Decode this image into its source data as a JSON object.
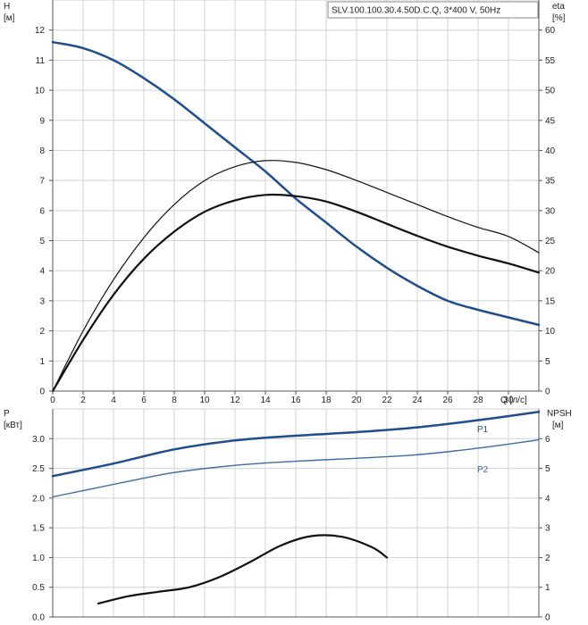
{
  "chart_data": [
    {
      "type": "line",
      "title": "SLV.100.100.30.4.50D.C.Q, 3*400 V, 50Hz",
      "x": {
        "label": "Q [л/с]",
        "range": [
          0,
          32
        ],
        "ticks": [
          0,
          2,
          4,
          6,
          8,
          10,
          12,
          14,
          16,
          18,
          20,
          22,
          24,
          26,
          28,
          30
        ]
      },
      "y_left": {
        "label": "H",
        "unit": "[м]",
        "range": [
          0,
          13
        ],
        "ticks": [
          0,
          1,
          2,
          3,
          4,
          5,
          6,
          7,
          8,
          9,
          10,
          11,
          12
        ]
      },
      "y_right": {
        "label": "eta",
        "unit": "[%]",
        "range": [
          0,
          65
        ],
        "ticks": [
          0,
          5,
          10,
          15,
          20,
          25,
          30,
          35,
          40,
          45,
          50,
          55,
          60
        ]
      },
      "grid": true,
      "series": [
        {
          "axis": "left",
          "color": "#1f4e8c",
          "width": 2.5,
          "points": [
            [
              0,
              11.6
            ],
            [
              2,
              11.4
            ],
            [
              4,
              11.0
            ],
            [
              6,
              10.4
            ],
            [
              8,
              9.7
            ],
            [
              10,
              8.9
            ],
            [
              12,
              8.1
            ],
            [
              14,
              7.3
            ],
            [
              16,
              6.4
            ],
            [
              18,
              5.6
            ],
            [
              20,
              4.8
            ],
            [
              22,
              4.1
            ],
            [
              24,
              3.5
            ],
            [
              26,
              3.0
            ],
            [
              28,
              2.7
            ],
            [
              30,
              2.45
            ],
            [
              32,
              2.2
            ]
          ]
        },
        {
          "axis": "right",
          "color": "#111111",
          "width": 1.2,
          "points": [
            [
              0,
              0
            ],
            [
              2,
              10
            ],
            [
              4,
              18.5
            ],
            [
              6,
              25.5
            ],
            [
              8,
              31
            ],
            [
              10,
              35
            ],
            [
              12,
              37.3
            ],
            [
              14,
              38.3
            ],
            [
              16,
              38.0
            ],
            [
              18,
              36.8
            ],
            [
              20,
              35.0
            ],
            [
              22,
              33.0
            ],
            [
              24,
              31.0
            ],
            [
              26,
              29.0
            ],
            [
              28,
              27.2
            ],
            [
              30,
              25.7
            ],
            [
              32,
              23.0
            ]
          ]
        },
        {
          "axis": "right",
          "color": "#111111",
          "width": 2.2,
          "points": [
            [
              0,
              0
            ],
            [
              2,
              8.5
            ],
            [
              4,
              16
            ],
            [
              6,
              22
            ],
            [
              8,
              26.5
            ],
            [
              10,
              29.8
            ],
            [
              12,
              31.7
            ],
            [
              14,
              32.6
            ],
            [
              16,
              32.4
            ],
            [
              18,
              31.5
            ],
            [
              20,
              29.8
            ],
            [
              22,
              27.8
            ],
            [
              24,
              25.8
            ],
            [
              26,
              24.0
            ],
            [
              28,
              22.5
            ],
            [
              30,
              21.2
            ],
            [
              32,
              19.7
            ]
          ]
        }
      ]
    },
    {
      "type": "line",
      "x": {
        "range": [
          0,
          32
        ]
      },
      "y_left": {
        "label": "P",
        "unit": "[кВт]",
        "range": [
          0,
          3.5
        ],
        "ticks": [
          0,
          0.5,
          1.0,
          1.5,
          2.0,
          2.5,
          3.0
        ],
        "tick_labels": [
          "0.0",
          "0.5",
          "1.0",
          "1.5",
          "2.0",
          "2.5",
          "3.0"
        ]
      },
      "y_right": {
        "label": "NPSH",
        "unit": "[м]",
        "range": [
          0,
          7
        ],
        "ticks": [
          0,
          1,
          2,
          3,
          4,
          5,
          6
        ]
      },
      "grid": true,
      "series": [
        {
          "name": "P1",
          "axis": "left",
          "color": "#1f4e8c",
          "width": 2.5,
          "points": [
            [
              0,
              2.37
            ],
            [
              4,
              2.58
            ],
            [
              8,
              2.82
            ],
            [
              12,
              2.97
            ],
            [
              16,
              3.05
            ],
            [
              20,
              3.11
            ],
            [
              24,
              3.19
            ],
            [
              28,
              3.31
            ],
            [
              32,
              3.45
            ]
          ]
        },
        {
          "name": "P2",
          "axis": "left",
          "color": "#3f6aa3",
          "width": 1.4,
          "points": [
            [
              0,
              2.02
            ],
            [
              4,
              2.23
            ],
            [
              8,
              2.43
            ],
            [
              12,
              2.55
            ],
            [
              16,
              2.62
            ],
            [
              20,
              2.67
            ],
            [
              24,
              2.73
            ],
            [
              28,
              2.84
            ],
            [
              32,
              2.98
            ]
          ]
        },
        {
          "axis": "right",
          "color": "#111111",
          "width": 2.2,
          "points": [
            [
              3,
              0.45
            ],
            [
              5,
              0.7
            ],
            [
              7,
              0.85
            ],
            [
              9,
              1.0
            ],
            [
              11,
              1.35
            ],
            [
              13,
              1.85
            ],
            [
              15,
              2.4
            ],
            [
              17,
              2.72
            ],
            [
              19,
              2.7
            ],
            [
              21,
              2.35
            ],
            [
              22,
              2.0
            ]
          ]
        }
      ]
    }
  ]
}
